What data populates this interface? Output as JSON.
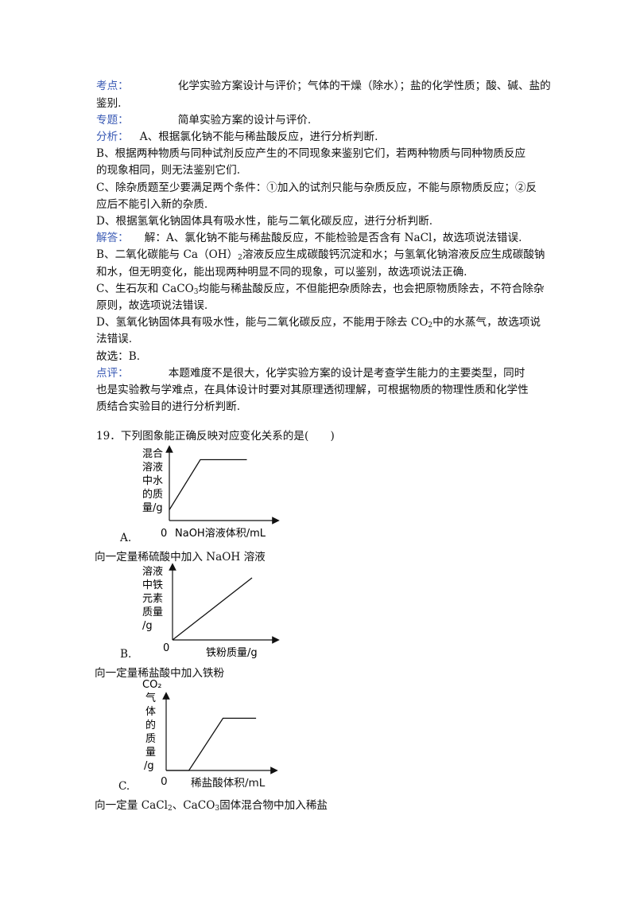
{
  "analysis": {
    "kaodian_label": "考点：",
    "kaodian_text_1": "化学实验方案设计与评价；气体的干燥（除水）；盐的化学性质；酸、碱、盐的",
    "kaodian_text_2": "鉴别.",
    "zhuanti_label": "专题：",
    "zhuanti_text": "简单实验方案的设计与评价.",
    "fenxi_label": "分析：",
    "fenxi_text": "A、根据氯化钠不能与稀盐酸反应，进行分析判断.",
    "fenxi_b1": "B、根据两种物质与同种试剂反应产生的不同现象来鉴别它们，若两种物质与同种物质反应",
    "fenxi_b2": "的现象相同，则无法鉴别它们.",
    "fenxi_c1": "C、除杂质题至少要满足两个条件：①加入的试剂只能与杂质反应，不能与原物质反应；②反",
    "fenxi_c2": "应后不能引入新的杂质.",
    "fenxi_d": "D、根据氢氧化钠固体具有吸水性，能与二氧化碳反应，进行分析判断.",
    "jieda_label": "解答：",
    "jieda_a": "解：A、氯化钠不能与稀盐酸反应，不能检验是否含有 NaCl，故选项说法错误.",
    "jieda_b1_pre": "B、二氧化碳能与 Ca（OH）",
    "jieda_b1_sub": "2",
    "jieda_b1_post": "溶液反应生成碳酸钙沉淀和水；与氢氧化钠溶液反应生成碳酸钠",
    "jieda_b2": "和水，但无明变化，能出现两种明显不同的现象，可以鉴别，故选项说法正确.",
    "jieda_c1_pre": "C、生石灰和 CaCO",
    "jieda_c1_sub": "3",
    "jieda_c1_post": "均能与稀盐酸反应，不但能把杂质除去，也会把原物质除去，不符合除杂",
    "jieda_c2": "原则，故选项说法错误.",
    "jieda_d1_pre": "D、氢氧化钠固体具有吸水性，能与二氧化碳反应，不能用于除去 CO",
    "jieda_d1_sub": "2",
    "jieda_d1_post": "中的水蒸气，故选项说",
    "jieda_d2": "法错误.",
    "guxuan": "故选：B.",
    "dianping_label": "点评：",
    "dianping_1": "本题难度不是很大，化学实验方案的设计是考查学生能力的主要类型，同时",
    "dianping_2": "也是实验教与学难点，在具体设计时要对其原理透彻理解，可根据物质的物理性质和化学性",
    "dianping_3": "质结合实验目的进行分析判断."
  },
  "question": {
    "stem": "19．下列图象能正确反映对应变化关系的是(　　)"
  },
  "options": [
    {
      "letter": "A.",
      "desc": "向一定量稀硫酸中加入 NaOH 溶液",
      "ylabel_lines": [
        "混合",
        "溶液",
        "中水",
        "的质",
        "量/g"
      ],
      "xlabel": "NaOH溶液体积/mL",
      "origin": "0"
    },
    {
      "letter": "B.",
      "desc": "向一定量稀盐酸中加入铁粉",
      "ylabel_lines": [
        "溶液",
        "中铁",
        "元素",
        "质量",
        "/g"
      ],
      "xlabel": "铁粉质量/g",
      "origin": "0"
    },
    {
      "letter": "C.",
      "desc_pre": "向一定量 CaCl",
      "desc_sub1": "2",
      "desc_mid": "、CaCO",
      "desc_sub2": "3",
      "desc_post": "固体混合物中加入稀盐",
      "ylabel_top": "CO₂",
      "ylabel_lines": [
        "气",
        "体",
        "的",
        "质",
        "量",
        "/g"
      ],
      "xlabel": "稀盐酸体积/mL",
      "origin": "0"
    }
  ],
  "chart_data": [
    {
      "type": "line",
      "title": "",
      "xlabel": "NaOH溶液体积/mL",
      "ylabel": "混合溶液中水的质量/g",
      "series": [
        {
          "x": [
            0,
            0.3,
            0.75
          ],
          "y": [
            0.15,
            0.85,
            0.85
          ]
        }
      ]
    },
    {
      "type": "line",
      "title": "",
      "xlabel": "铁粉质量/g",
      "ylabel": "溶液中铁元素质量/g",
      "series": [
        {
          "x": [
            0,
            1
          ],
          "y": [
            0,
            1
          ]
        }
      ]
    },
    {
      "type": "line",
      "title": "",
      "xlabel": "稀盐酸体积/mL",
      "ylabel": "CO₂气体的质量/g",
      "series": [
        {
          "x": [
            0,
            0.22,
            0.55,
            0.87
          ],
          "y": [
            0,
            0,
            0.82,
            0.82
          ]
        }
      ]
    }
  ]
}
